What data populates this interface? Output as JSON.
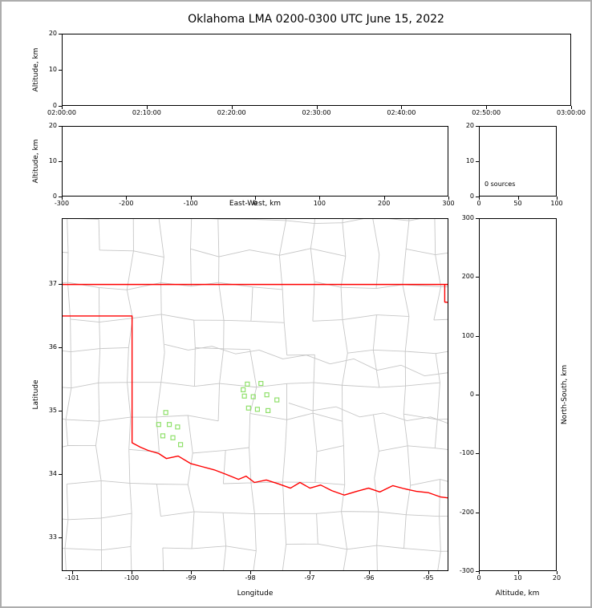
{
  "figure": {
    "title": "Oklahoma LMA 0200-0300 UTC June 15, 2022"
  },
  "chart_data": [
    {
      "id": "altitude_vs_time",
      "type": "scatter",
      "xlabel": "",
      "ylabel": "Altitude, km",
      "xtick_labels": [
        "02:00:00",
        "02:10:00",
        "02:20:00",
        "02:30:00",
        "02:40:00",
        "02:50:00",
        "03:00:00"
      ],
      "yticks": [
        0,
        10,
        20
      ],
      "ylim": [
        0,
        20
      ],
      "points": []
    },
    {
      "id": "altitude_vs_east_west",
      "type": "scatter",
      "xlabel": "East-West, km",
      "ylabel": "Altitude, km",
      "xticks": [
        -300,
        -200,
        -100,
        0,
        100,
        200,
        300
      ],
      "xlim": [
        -300,
        300
      ],
      "yticks": [
        0,
        10,
        20
      ],
      "ylim": [
        0,
        20
      ],
      "points": []
    },
    {
      "id": "altitude_histogram",
      "type": "histogram",
      "annotation": "0 sources",
      "xticks": [
        0,
        50,
        100
      ],
      "xlim": [
        0,
        100
      ],
      "yticks": [
        0,
        10,
        20
      ],
      "ylim": [
        0,
        20
      ],
      "values": []
    },
    {
      "id": "plan_view_map",
      "type": "map-scatter",
      "xlabel": "Longitude",
      "ylabel": "Latitude",
      "xticks": [
        -101,
        -100,
        -99,
        -98,
        -97,
        -96,
        -95
      ],
      "xlim": [
        -101.176,
        -94.662
      ],
      "yticks": [
        33,
        34,
        35,
        36,
        37
      ],
      "ylim": [
        32.468,
        38.038
      ],
      "border_color": "#ff0000",
      "county_color": "#c6c6c6",
      "marker_color": "#8fe06a",
      "marker_shape": "open-square",
      "markers": [
        [
          -98.05,
          35.42
        ],
        [
          -97.82,
          35.43
        ],
        [
          -98.12,
          35.33
        ],
        [
          -98.1,
          35.23
        ],
        [
          -97.95,
          35.22
        ],
        [
          -97.72,
          35.25
        ],
        [
          -98.03,
          35.04
        ],
        [
          -97.88,
          35.02
        ],
        [
          -97.7,
          35.0
        ],
        [
          -97.55,
          35.17
        ],
        [
          -99.43,
          34.97
        ],
        [
          -99.55,
          34.78
        ],
        [
          -99.37,
          34.78
        ],
        [
          -99.23,
          34.74
        ],
        [
          -99.48,
          34.6
        ],
        [
          -99.31,
          34.57
        ],
        [
          -99.18,
          34.46
        ]
      ],
      "state_border": [
        [
          [
            -101.176,
            37
          ],
          [
            -94.662,
            37
          ]
        ],
        [
          [
            -94.71,
            37
          ],
          [
            -94.71,
            36.72
          ],
          [
            -94.43,
            36.7
          ]
        ],
        [
          [
            -101.176,
            36.5
          ],
          [
            -100,
            36.5
          ],
          [
            -100,
            34.49
          ],
          [
            -99.86,
            34.42
          ],
          [
            -99.73,
            34.37
          ],
          [
            -99.55,
            34.32
          ],
          [
            -99.42,
            34.24
          ],
          [
            -99.22,
            34.28
          ],
          [
            -99.01,
            34.16
          ],
          [
            -98.81,
            34.11
          ],
          [
            -98.61,
            34.06
          ],
          [
            -98.41,
            33.99
          ],
          [
            -98.2,
            33.91
          ],
          [
            -98.07,
            33.96
          ],
          [
            -97.93,
            33.86
          ],
          [
            -97.73,
            33.9
          ],
          [
            -97.53,
            33.84
          ],
          [
            -97.32,
            33.77
          ],
          [
            -97.16,
            33.86
          ],
          [
            -96.99,
            33.77
          ],
          [
            -96.81,
            33.82
          ],
          [
            -96.62,
            33.73
          ],
          [
            -96.41,
            33.66
          ],
          [
            -96.2,
            33.72
          ],
          [
            -96,
            33.77
          ],
          [
            -95.81,
            33.71
          ],
          [
            -95.59,
            33.81
          ],
          [
            -95.39,
            33.76
          ],
          [
            -95.19,
            33.72
          ],
          [
            -94.99,
            33.7
          ],
          [
            -94.78,
            33.63
          ],
          [
            -94.6,
            33.61
          ]
        ]
      ],
      "rivers": [
        [
          [
            -99.45,
            36.05
          ],
          [
            -99.05,
            35.96
          ],
          [
            -98.65,
            36.02
          ],
          [
            -98.25,
            35.9
          ],
          [
            -97.85,
            35.96
          ],
          [
            -97.45,
            35.82
          ],
          [
            -97.05,
            35.88
          ],
          [
            -96.65,
            35.74
          ],
          [
            -96.25,
            35.82
          ],
          [
            -95.85,
            35.64
          ],
          [
            -95.45,
            35.72
          ],
          [
            -95.05,
            35.55
          ],
          [
            -94.66,
            35.6
          ]
        ],
        [
          [
            -97.35,
            35.12
          ],
          [
            -96.95,
            35.0
          ],
          [
            -96.55,
            35.06
          ],
          [
            -96.15,
            34.9
          ],
          [
            -95.75,
            34.96
          ],
          [
            -95.35,
            34.84
          ],
          [
            -94.95,
            34.9
          ],
          [
            -94.66,
            34.8
          ]
        ]
      ]
    },
    {
      "id": "altitude_vs_north_south",
      "type": "scatter",
      "xlabel": "Altitude, km",
      "ylabel_right": "North-South, km",
      "xticks": [
        0,
        10,
        20
      ],
      "xlim": [
        0,
        20
      ],
      "yticks": [
        -300,
        -200,
        -100,
        0,
        100,
        200,
        300
      ],
      "ylim": [
        -300,
        300
      ],
      "points": []
    }
  ]
}
